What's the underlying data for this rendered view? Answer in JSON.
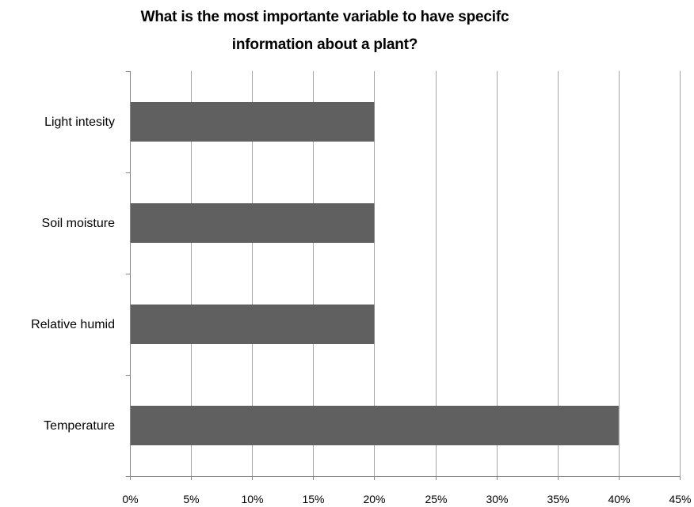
{
  "chart_data": {
    "type": "bar",
    "orientation": "horizontal",
    "title_lines": [
      "What is the most importante variable to have specifc",
      "information about a plant?"
    ],
    "categories": [
      "Light intesity",
      "Soil moisture",
      "Relative humid",
      "Temperature"
    ],
    "values": [
      0.2,
      0.2,
      0.2,
      0.4
    ],
    "xlim": [
      0,
      0.45
    ],
    "x_ticks": [
      0,
      0.05,
      0.1,
      0.15,
      0.2,
      0.25,
      0.3,
      0.35,
      0.4,
      0.45
    ],
    "x_tick_labels": [
      "0%",
      "5%",
      "10%",
      "15%",
      "20%",
      "25%",
      "30%",
      "35%",
      "40%",
      "45%"
    ],
    "xlabel": "",
    "ylabel": "",
    "grid": "vertical",
    "legend": "none",
    "bar_color": "#606060",
    "grid_color": "#a6a6a6",
    "axis_color": "#868686"
  }
}
